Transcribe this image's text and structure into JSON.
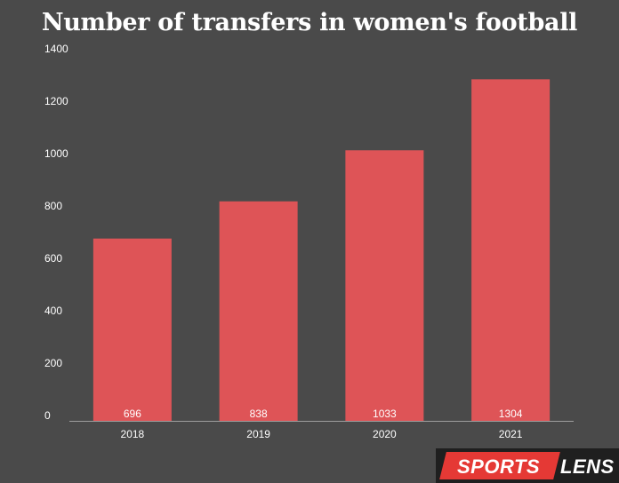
{
  "chart_data": {
    "type": "bar",
    "title": "Number of transfers in women's football",
    "categories": [
      "2018",
      "2019",
      "2020",
      "2021"
    ],
    "values": [
      696,
      838,
      1033,
      1304
    ],
    "data_labels": [
      "696",
      "838",
      "1033",
      "1304"
    ],
    "yticks": [
      0,
      200,
      400,
      600,
      800,
      1000,
      1200,
      1400
    ],
    "ylim": [
      0,
      1400
    ],
    "xlabel": "",
    "ylabel": "",
    "grid": false,
    "legend": "none",
    "colors": {
      "bar": "#de5457",
      "background": "#4a4a4a",
      "axis": "#9e9e9e",
      "text": "#ffffff"
    }
  },
  "brand": {
    "part1": "SPORTS",
    "part2": "LENS"
  }
}
